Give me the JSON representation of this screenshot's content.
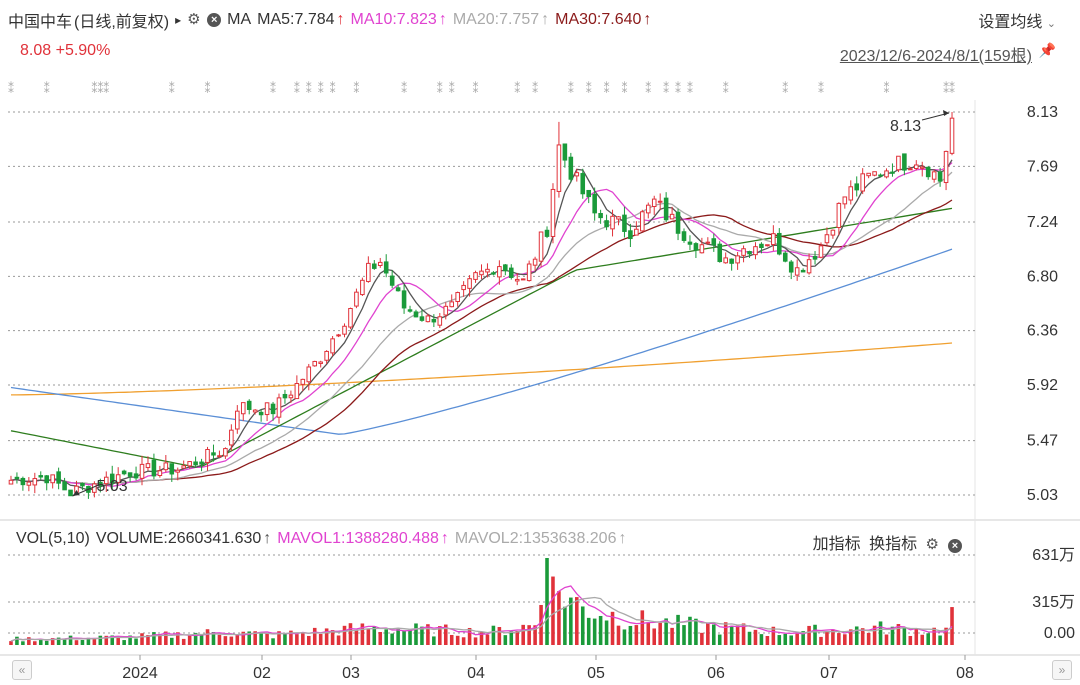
{
  "header": {
    "stock_name": "中国中车",
    "mode": "(日线,前复权)",
    "play_icon": "▸",
    "ma_label": "MA",
    "ma5": "MA5:7.784",
    "ma10": "MA10:7.823",
    "ma20": "MA20:7.757",
    "ma30": "MA30:7.640",
    "up_arrow": "↑",
    "settings_label": "设置均线",
    "price": "8.08",
    "change": "+5.90%",
    "range": "2023/12/6-2024/8/1(159根)"
  },
  "volume_header": {
    "vol": "VOL(5,10)",
    "volume": "VOLUME:2660341.630",
    "mavol1": "MAVOL1:1388280.488",
    "mavol2": "MAVOL2:1353638.206",
    "up_arrow": "↑",
    "add_indicator": "加指标",
    "switch_indicator": "换指标"
  },
  "colors": {
    "up": "#e0323a",
    "down": "#1a9a3a",
    "ma5": "#555555",
    "ma10": "#e043d0",
    "ma20": "#aaaaaa",
    "ma30": "#8b1a1a",
    "ma60": "#2e7d1e",
    "ma120": "#5b8fd6",
    "ma250": "#f0a030"
  },
  "chart_data": {
    "type": "candlestick",
    "price_axis_ticks": [
      "8.13",
      "7.69",
      "7.24",
      "6.80",
      "6.36",
      "5.92",
      "5.47",
      "5.03"
    ],
    "volume_axis_ticks": [
      "631万",
      "315万",
      "0.00"
    ],
    "x_axis_labels": [
      "2024",
      "02",
      "03",
      "04",
      "05",
      "06",
      "07",
      "08"
    ],
    "annotations": {
      "high": "8.13",
      "low": "5.03"
    },
    "ylim": [
      5.0,
      8.2
    ],
    "anchors": [
      [
        0,
        5.15
      ],
      [
        6,
        5.18
      ],
      [
        10,
        5.05
      ],
      [
        14,
        5.12
      ],
      [
        20,
        5.22
      ],
      [
        28,
        5.24
      ],
      [
        36,
        5.4
      ],
      [
        38,
        5.75
      ],
      [
        44,
        5.72
      ],
      [
        48,
        5.92
      ],
      [
        52,
        6.15
      ],
      [
        56,
        6.45
      ],
      [
        60,
        6.85
      ],
      [
        62,
        6.92
      ],
      [
        66,
        6.55
      ],
      [
        70,
        6.45
      ],
      [
        74,
        6.55
      ],
      [
        78,
        6.8
      ],
      [
        82,
        6.9
      ],
      [
        86,
        6.75
      ],
      [
        90,
        7.2
      ],
      [
        92,
        7.85
      ],
      [
        94,
        7.65
      ],
      [
        98,
        7.3
      ],
      [
        104,
        7.18
      ],
      [
        108,
        7.4
      ],
      [
        112,
        7.2
      ],
      [
        116,
        7.05
      ],
      [
        120,
        6.95
      ],
      [
        124,
        7.05
      ],
      [
        128,
        7.1
      ],
      [
        132,
        6.85
      ],
      [
        136,
        7.05
      ],
      [
        140,
        7.45
      ],
      [
        144,
        7.6
      ],
      [
        148,
        7.7
      ],
      [
        152,
        7.75
      ],
      [
        154,
        7.68
      ],
      [
        156,
        7.58
      ],
      [
        158,
        8.08
      ]
    ],
    "vol_anchors": [
      [
        0,
        0.4
      ],
      [
        20,
        0.55
      ],
      [
        36,
        0.9
      ],
      [
        44,
        0.7
      ],
      [
        60,
        1.2
      ],
      [
        80,
        0.9
      ],
      [
        88,
        1.4
      ],
      [
        90,
        5.6
      ],
      [
        92,
        3.8
      ],
      [
        96,
        2.6
      ],
      [
        104,
        1.8
      ],
      [
        116,
        1.3
      ],
      [
        130,
        0.9
      ],
      [
        145,
        1.2
      ],
      [
        157,
        1.0
      ],
      [
        158,
        2.66
      ]
    ],
    "vol_max": 6.31,
    "bars": 159
  }
}
